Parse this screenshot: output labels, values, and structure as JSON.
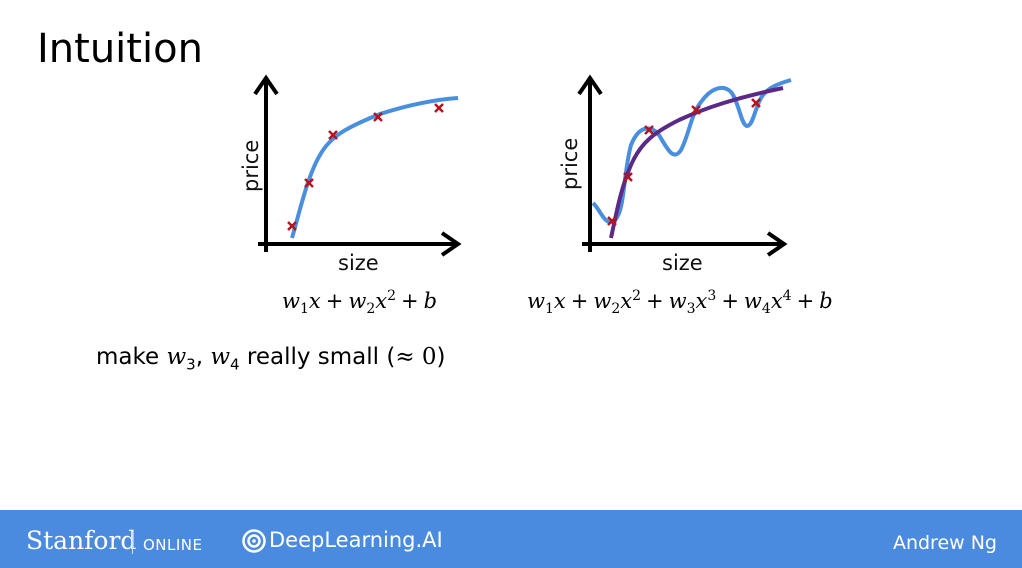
{
  "title": "Intuition",
  "plot_left": {
    "xlabel": "size",
    "ylabel": "price"
  },
  "plot_right": {
    "xlabel": "size",
    "ylabel": "price"
  },
  "formula_left": {
    "parts": [
      "w",
      "1",
      "x",
      "+",
      "w",
      "2",
      "x",
      "2",
      "+",
      "b"
    ]
  },
  "formula_right": {
    "parts": [
      "w",
      "1",
      "x",
      "+",
      "w",
      "2",
      "x",
      "2",
      "+",
      "w",
      "3",
      "x",
      "3",
      "+",
      "w",
      "4",
      "x",
      "4",
      "+",
      "b"
    ]
  },
  "note": {
    "prefix": "make ",
    "w": "w",
    "sub3": "3",
    "comma": ", ",
    "sub4": "4",
    "middle": " really small (",
    "approx": "≈ 0",
    "suffix": ")"
  },
  "footer": {
    "stanford": "Stanford",
    "online": "ONLINE",
    "deeplearning": "DeepLearning.AI",
    "author": "Andrew Ng"
  },
  "colors": {
    "fit_curve": "#4a8ee0",
    "overfit_curve": "#4a8ee0",
    "reg_curve": "#5b2a86",
    "marker": "#b5141e",
    "footer": "#4a8bdf"
  }
}
